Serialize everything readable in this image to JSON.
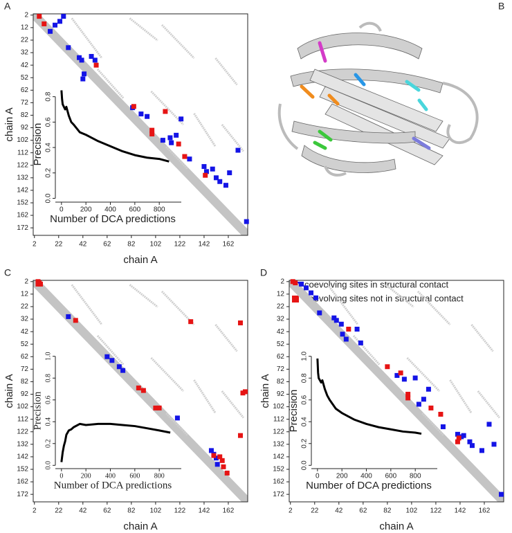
{
  "chart_data": [
    {
      "type": "contact-map",
      "panel_label": "A",
      "x_label": "chain A",
      "y_label": "chain A",
      "xlim": [
        1,
        178
      ],
      "ylim": [
        178,
        1
      ],
      "xticks": [
        2,
        22,
        42,
        62,
        82,
        102,
        122,
        142,
        162
      ],
      "yticks": [
        2,
        12,
        22,
        32,
        42,
        52,
        62,
        72,
        82,
        92,
        102,
        112,
        122,
        132,
        142,
        152,
        162,
        172
      ],
      "series": [
        {
          "color": "#1414e6",
          "x": [
            26,
            23,
            19,
            15,
            30,
            39,
            41,
            49,
            52,
            43,
            42,
            83,
            90,
            95,
            108,
            115,
            114,
            119,
            123,
            130,
            142,
            149,
            144,
            152,
            155,
            160,
            163,
            170,
            177
          ],
          "values": [
            3,
            7,
            10,
            15,
            28,
            36,
            38,
            35,
            38,
            49,
            53,
            76,
            81,
            83,
            102,
            104,
            100,
            98,
            85,
            117,
            123,
            125,
            127,
            132,
            135,
            138,
            128,
            110,
            167
          ]
        },
        {
          "color": "#e61414",
          "x": [
            6,
            10,
            53,
            84,
            110,
            99,
            99,
            121,
            126,
            143
          ],
          "values": [
            3,
            9,
            42,
            75,
            79,
            94,
            97,
            105,
            115,
            130
          ]
        }
      ]
    },
    {
      "type": "line",
      "x_label": "Number of DCA predictions",
      "y_label": "Precision",
      "xlim": [
        -50,
        980
      ],
      "ylim": [
        -0.03,
        0.88
      ],
      "xticks": [
        0,
        200,
        400,
        600,
        800
      ],
      "yticks": [
        {
          "value": 0,
          "label": "0.0"
        },
        0.2,
        0.4,
        0.6,
        0.8
      ],
      "series": [
        {
          "color": "#000000",
          "x": [
            0,
            5,
            10,
            20,
            30,
            40,
            60,
            80,
            100,
            150,
            200,
            300,
            400,
            500,
            600,
            700,
            800,
            880
          ],
          "values": [
            0.85,
            0.78,
            0.74,
            0.72,
            0.7,
            0.72,
            0.65,
            0.6,
            0.58,
            0.52,
            0.5,
            0.45,
            0.41,
            0.37,
            0.34,
            0.32,
            0.31,
            0.29
          ]
        }
      ]
    },
    {
      "type": "contact-map",
      "panel_label": "C",
      "x_label": "chain A",
      "y_label": "chain A",
      "xlim": [
        1,
        178
      ],
      "ylim": [
        178,
        1
      ],
      "xticks": [
        2,
        22,
        42,
        62,
        82,
        102,
        122,
        142,
        162
      ],
      "yticks": [
        2,
        12,
        22,
        32,
        42,
        52,
        62,
        72,
        82,
        92,
        102,
        112,
        122,
        132,
        142,
        152,
        162,
        172
      ],
      "series": [
        {
          "color": "#1414e6",
          "x": [
            30,
            62,
            66,
            72,
            75,
            120,
            148,
            150,
            152,
            153
          ],
          "values": [
            30,
            62,
            65,
            70,
            73,
            111,
            137,
            140,
            143,
            148
          ]
        },
        {
          "color": "#e61414",
          "x": [
            5,
            6,
            7,
            5,
            36,
            88,
            92,
            102,
            105,
            131,
            172,
            176,
            174,
            172,
            150,
            155,
            157,
            161,
            158
          ],
          "values": [
            2,
            3,
            4,
            4,
            33,
            87,
            89,
            103,
            103,
            34,
            35,
            90,
            91,
            125,
            141,
            142,
            145,
            155,
            150
          ]
        }
      ]
    },
    {
      "type": "line",
      "x_label": "Number of DCA predictions",
      "y_label": "Precision",
      "xlim": [
        -50,
        980
      ],
      "ylim": [
        -0.03,
        1.03
      ],
      "xticks": [
        0,
        200,
        400,
        600,
        800
      ],
      "yticks": [
        {
          "value": 0,
          "label": "0.0"
        },
        0.2,
        0.4,
        0.6,
        0.8,
        {
          "value": 1,
          "label": "1.0"
        }
      ],
      "series": [
        {
          "color": "#000000",
          "x": [
            0,
            10,
            20,
            30,
            40,
            60,
            80,
            100,
            150,
            200,
            300,
            400,
            500,
            600,
            700,
            800,
            890
          ],
          "values": [
            0.03,
            0.12,
            0.18,
            0.22,
            0.28,
            0.32,
            0.33,
            0.35,
            0.38,
            0.37,
            0.38,
            0.38,
            0.37,
            0.36,
            0.34,
            0.32,
            0.3
          ]
        }
      ]
    },
    {
      "type": "contact-map",
      "panel_label": "D",
      "x_label": "chain A",
      "y_label": "chain A",
      "xlim": [
        1,
        178
      ],
      "ylim": [
        178,
        1
      ],
      "xticks": [
        2,
        22,
        42,
        62,
        82,
        102,
        122,
        142,
        162
      ],
      "yticks": [
        2,
        12,
        22,
        32,
        42,
        52,
        62,
        72,
        82,
        92,
        102,
        112,
        122,
        132,
        142,
        152,
        162,
        172
      ],
      "series": [
        {
          "color": "#1414e6",
          "x": [
            11,
            15,
            19,
            23,
            26,
            38,
            40,
            44,
            45,
            48,
            57,
            60,
            90,
            96,
            105,
            108,
            112,
            116,
            128,
            140,
            145,
            150,
            152,
            160,
            166,
            170,
            176,
            143
          ],
          "values": [
            4,
            7,
            11,
            15,
            27,
            31,
            33,
            36,
            44,
            48,
            40,
            51,
            77,
            80,
            79,
            100,
            96,
            88,
            118,
            124,
            125,
            130,
            133,
            137,
            116,
            132,
            172,
            126
          ]
        },
        {
          "color": "#e61414",
          "x": [
            4,
            6,
            50,
            82,
            93,
            99,
            99,
            118,
            126,
            140,
            141
          ],
          "values": [
            2,
            3,
            40,
            70,
            75,
            92,
            95,
            103,
            108,
            130,
            127
          ]
        }
      ]
    },
    {
      "type": "line",
      "x_label": "Number of DCA predictions",
      "y_label": "Precision",
      "xlim": [
        -50,
        980
      ],
      "ylim": [
        -0.03,
        1.03
      ],
      "xticks": [
        0,
        200,
        400,
        600,
        800
      ],
      "yticks": [
        {
          "value": 0,
          "label": "0.0"
        },
        0.2,
        0.4,
        0.6,
        0.8,
        {
          "value": 1,
          "label": "1.0"
        }
      ],
      "series": [
        {
          "color": "#000000",
          "x": [
            0,
            5,
            10,
            20,
            30,
            40,
            60,
            80,
            100,
            150,
            200,
            300,
            400,
            500,
            600,
            700,
            800,
            850
          ],
          "values": [
            0.98,
            0.85,
            0.8,
            0.78,
            0.76,
            0.78,
            0.7,
            0.64,
            0.6,
            0.52,
            0.48,
            0.42,
            0.38,
            0.35,
            0.33,
            0.31,
            0.3,
            0.29
          ]
        }
      ]
    }
  ],
  "panel_b": {
    "label": "B",
    "legend": [
      {
        "name": "coevolving sites in structural contact",
        "color": "#1414e6"
      },
      {
        "name": "coevolving sites not in structural contact",
        "color": "#e61414"
      }
    ]
  }
}
